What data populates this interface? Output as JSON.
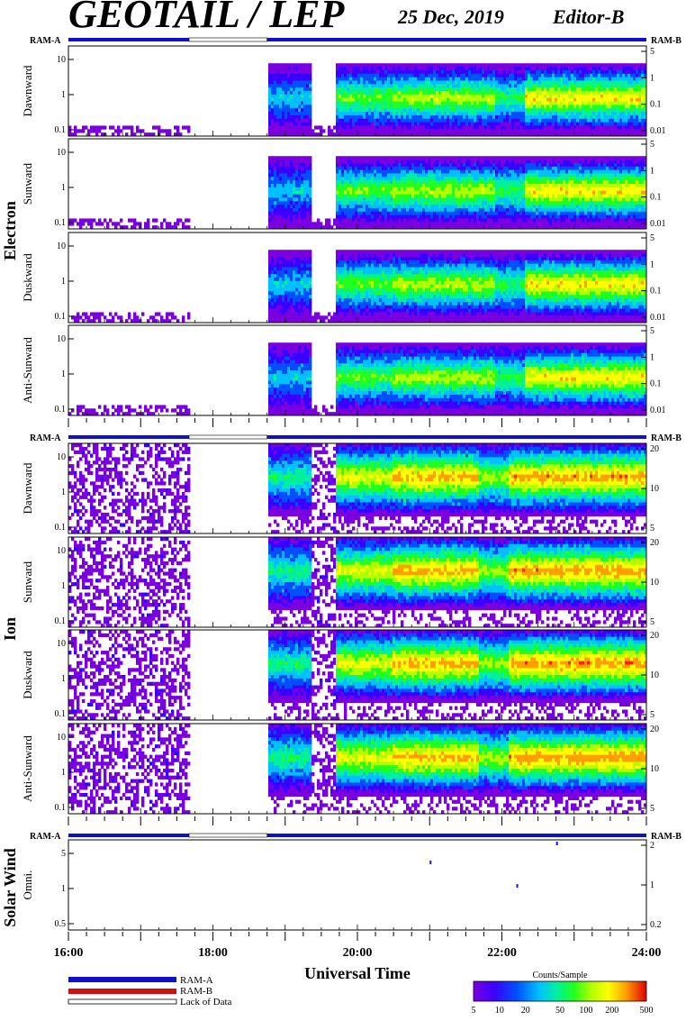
{
  "header": {
    "title": "GEOTAIL / LEP",
    "date": "25 Dec, 2019",
    "editor": "Editor-B"
  },
  "ram_labels": {
    "left": "RAM-A",
    "right": "RAM-B"
  },
  "groups": {
    "electron": "Electron",
    "ion": "Ion",
    "solar_wind": "Solar Wind"
  },
  "legend": {
    "ram_a": "RAM-A",
    "ram_b": "RAM-B",
    "lack": "Lack of Data"
  },
  "colorbar": {
    "title": "Counts/Sample",
    "ticks": [
      "5",
      "10",
      "20",
      "50",
      "100",
      "200",
      "500"
    ]
  },
  "colors": {
    "ram_a": "#1010c8",
    "ram_b": "#d01010",
    "scale": [
      "#7a00e0",
      "#3a00ff",
      "#0050ff",
      "#00c0ff",
      "#00f0a0",
      "#20ff20",
      "#b0ff00",
      "#ffff00",
      "#ffa000",
      "#ff2000",
      "#e00000"
    ]
  },
  "chart_data": {
    "type": "heatmap",
    "xlabel": "Universal Time",
    "x_ticks": [
      "16:00",
      "18:00",
      "20:00",
      "22:00",
      "24:00"
    ],
    "xlim": [
      16,
      24
    ],
    "data_gaps": [
      [
        17.67,
        18.75
      ]
    ],
    "panels": [
      {
        "group": "electron",
        "label": "Dawnward",
        "left_ticks": [
          "10",
          "1",
          "0.1"
        ],
        "right_ticks": [
          "5",
          "1",
          "0.1",
          "0.01"
        ],
        "profile": "e_dawn"
      },
      {
        "group": "electron",
        "label": "Sunward",
        "left_ticks": [
          "10",
          "1",
          "0.1"
        ],
        "right_ticks": [
          "5",
          "1",
          "0.1",
          "0.01"
        ],
        "profile": "e_sun"
      },
      {
        "group": "electron",
        "label": "Duskward",
        "left_ticks": [
          "10",
          "1",
          "0.1"
        ],
        "right_ticks": [
          "5",
          "1",
          "0.1",
          "0.01"
        ],
        "profile": "e_dusk"
      },
      {
        "group": "electron",
        "label": "Anti-Sunward",
        "left_ticks": [
          "10",
          "1",
          "0.1"
        ],
        "right_ticks": [
          "5",
          "1",
          "0.1",
          "0.01"
        ],
        "profile": "e_anti"
      },
      {
        "group": "ion",
        "label": "Dawnward",
        "left_ticks": [
          "10",
          "1",
          "0.1"
        ],
        "right_ticks": [
          "20",
          "10",
          "5"
        ],
        "profile": "i_dawn"
      },
      {
        "group": "ion",
        "label": "Sunward",
        "left_ticks": [
          "10",
          "1",
          "0.1"
        ],
        "right_ticks": [
          "20",
          "10",
          "5"
        ],
        "profile": "i_sun"
      },
      {
        "group": "ion",
        "label": "Duskward",
        "left_ticks": [
          "10",
          "1",
          "0.1"
        ],
        "right_ticks": [
          "20",
          "10",
          "5"
        ],
        "profile": "i_dusk"
      },
      {
        "group": "ion",
        "label": "Anti-Sunward",
        "left_ticks": [
          "10",
          "1",
          "0.1"
        ],
        "right_ticks": [
          "20",
          "10",
          "5"
        ],
        "profile": "i_anti"
      },
      {
        "group": "solar_wind",
        "label": "Omni.",
        "left_ticks": [
          "5",
          "1",
          "0.5"
        ],
        "right_ticks": [
          "2",
          "1",
          "0.2"
        ],
        "profile": "sw"
      }
    ]
  }
}
